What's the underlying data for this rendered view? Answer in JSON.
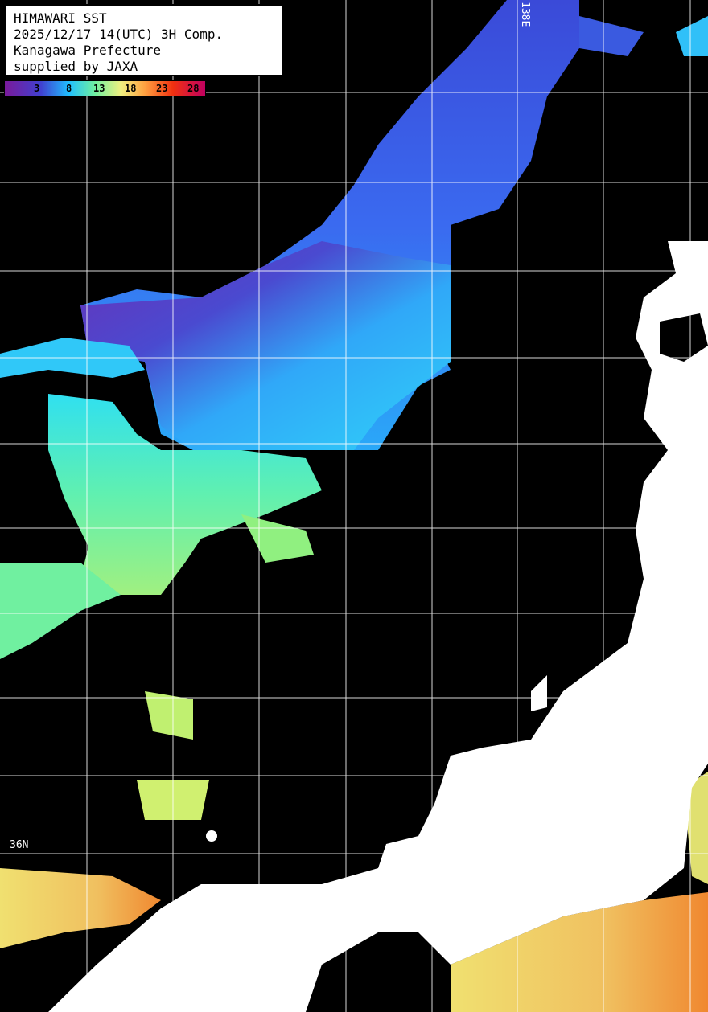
{
  "info": {
    "title": "HIMAWARI SST",
    "datetime": "2025/12/17 14(UTC) 3H Comp.",
    "region": "Kanagawa Prefecture",
    "credit": "supplied by JAXA"
  },
  "colorbar": {
    "ticks": [
      "3",
      "8",
      "13",
      "18",
      "23",
      "28"
    ],
    "colors": {
      "cold": "#7a1a9a",
      "cool": "#20c0ff",
      "mid": "#f0f080",
      "warm": "#ffa040",
      "hot": "#c00060"
    }
  },
  "grid_labels": {
    "longitude": "138E",
    "latitude": "36N"
  },
  "colors": {
    "land": "#ffffff",
    "no_data": "#000000",
    "grid": "#ffffff"
  }
}
